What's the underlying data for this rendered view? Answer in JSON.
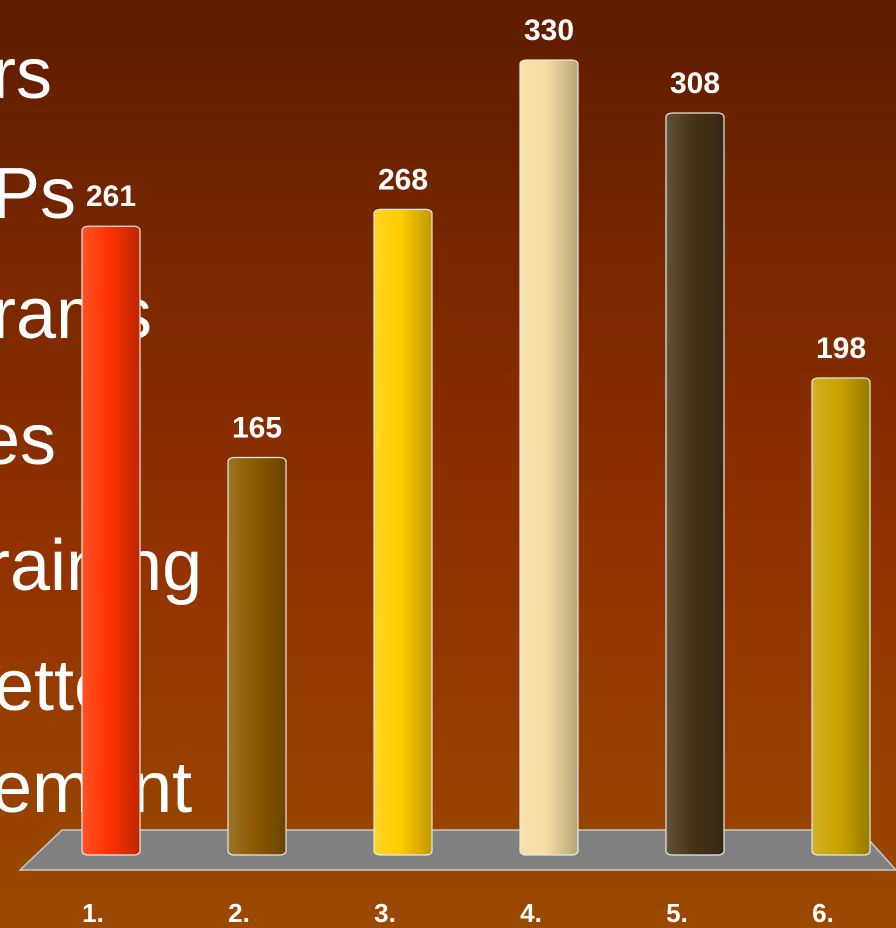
{
  "background_text": [
    "rs",
    "Ps",
    "rams",
    "es",
    "raining",
    "etter",
    "ement"
  ],
  "chart_data": {
    "type": "bar",
    "categories": [
      "1.",
      "2.",
      "3.",
      "4.",
      "5.",
      "6."
    ],
    "values": [
      261,
      165,
      268,
      330,
      308,
      198
    ],
    "ylim": [
      0,
      330
    ],
    "colors": [
      "#ff3300",
      "#8c5a00",
      "#ffcc00",
      "#f5dca0",
      "#463416",
      "#c8a400"
    ],
    "grid": false,
    "legend": "none"
  }
}
